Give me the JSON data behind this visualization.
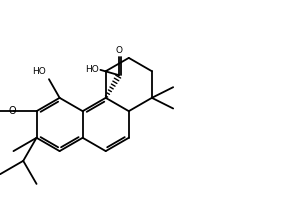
{
  "bg": "#ffffff",
  "lc": "#000000",
  "lw": 1.3,
  "figsize": [
    2.9,
    2.2
  ],
  "dpi": 100,
  "xlim": [
    0,
    10
  ],
  "ylim": [
    0,
    7.6
  ],
  "b": 0.92
}
